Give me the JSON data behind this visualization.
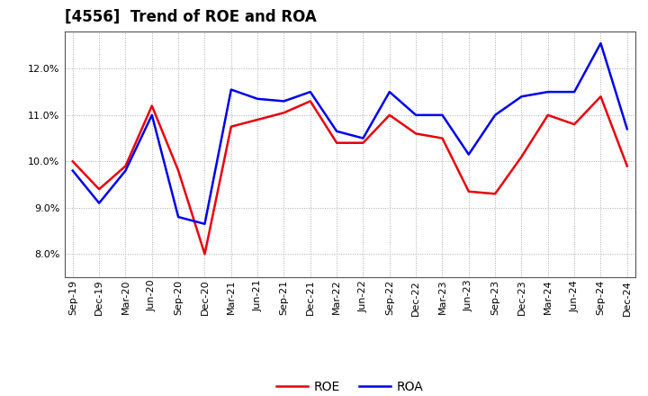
{
  "title": "[4556]  Trend of ROE and ROA",
  "x_labels": [
    "Sep-19",
    "Dec-19",
    "Mar-20",
    "Jun-20",
    "Sep-20",
    "Dec-20",
    "Mar-21",
    "Jun-21",
    "Sep-21",
    "Dec-21",
    "Mar-22",
    "Jun-22",
    "Sep-22",
    "Dec-22",
    "Mar-23",
    "Jun-23",
    "Sep-23",
    "Dec-23",
    "Mar-24",
    "Jun-24",
    "Sep-24",
    "Dec-24"
  ],
  "roe": [
    10.0,
    9.4,
    9.9,
    11.2,
    9.8,
    8.0,
    10.75,
    10.9,
    11.05,
    11.3,
    10.4,
    10.4,
    11.0,
    10.6,
    10.5,
    9.35,
    9.3,
    10.1,
    11.0,
    10.8,
    11.4,
    9.9
  ],
  "roa": [
    9.8,
    9.1,
    9.8,
    11.0,
    8.8,
    8.65,
    11.55,
    11.35,
    11.3,
    11.5,
    10.65,
    10.5,
    11.5,
    11.0,
    11.0,
    10.15,
    11.0,
    11.4,
    11.5,
    11.5,
    12.55,
    10.7
  ],
  "roe_color": "#e8000d",
  "roa_color": "#0000e8",
  "ylim": [
    7.5,
    12.8
  ],
  "yticks": [
    8.0,
    9.0,
    10.0,
    11.0,
    12.0
  ],
  "background_color": "#ffffff",
  "plot_bg_color": "#ffffff",
  "grid_color": "#aaaaaa",
  "title_fontsize": 12,
  "legend_fontsize": 10,
  "tick_fontsize": 8,
  "line_width": 1.8
}
